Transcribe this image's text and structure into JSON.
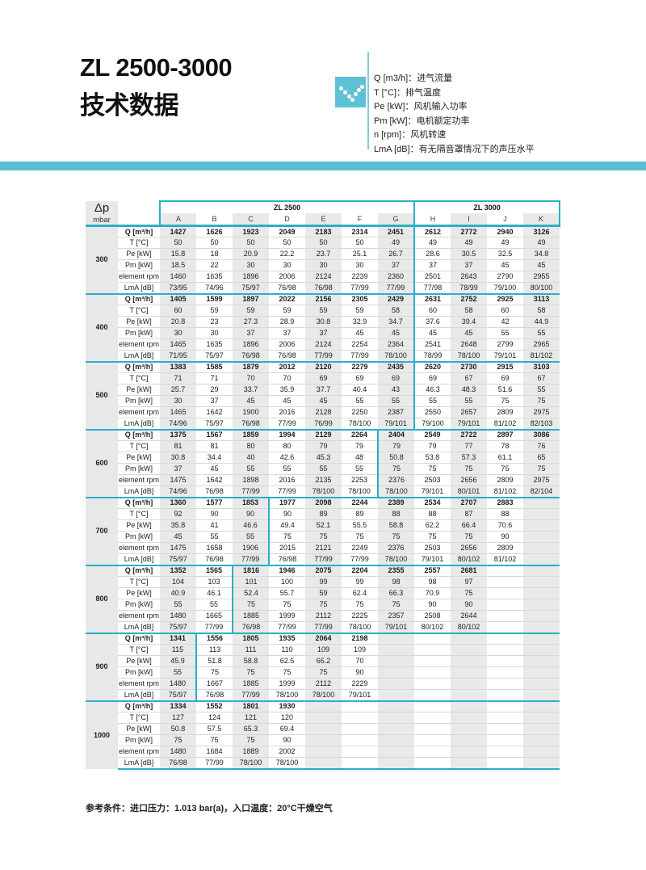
{
  "page": {
    "title_line1": "ZL 2500-3000",
    "title_line2": "技术数据",
    "footnote": "参考条件：进口压力：1.013 bar(a)，入口温度：20°C干燥空气"
  },
  "colors": {
    "accent_teal": "#2bafc9",
    "band_teal": "#58bed4",
    "icon_teal": "#5fc1d6",
    "stripe_gray": "#e9e9e9"
  },
  "legend": {
    "items": [
      {
        "label": "Q [m3/h]：",
        "desc": "进气流量"
      },
      {
        "label": "T [°C]：",
        "desc": "排气温度"
      },
      {
        "label": "Pe [kW]：",
        "desc": "风机输入功率"
      },
      {
        "label": "Pm [kW]：",
        "desc": "电机额定功率"
      },
      {
        "label": "n [rpm]：",
        "desc": "风机转速"
      },
      {
        "label": "LmA [dB]：",
        "desc": "有无隔音罩情况下的声压水平"
      }
    ]
  },
  "table": {
    "corner_top": "Δp",
    "corner_bottom": "mbar",
    "model_headers": [
      {
        "label": "ZL 2500",
        "span": 7
      },
      {
        "label": "ZL 3000",
        "span": 4
      }
    ],
    "columns": [
      "A",
      "B",
      "C",
      "D",
      "E",
      "F",
      "G",
      "H",
      "I",
      "J",
      "K"
    ],
    "row_labels": [
      "Q [m³/h]",
      "T [°C]",
      "Pe [kW]",
      "Pm [kW]",
      "element rpm",
      "LmA [dB]"
    ],
    "groups": [
      {
        "dp": "300",
        "divider_after": "G",
        "rows": [
          [
            "1427",
            "1626",
            "1923",
            "2049",
            "2183",
            "2314",
            "2451",
            "2612",
            "2772",
            "2940",
            "3126"
          ],
          [
            "50",
            "50",
            "50",
            "50",
            "50",
            "50",
            "49",
            "49",
            "49",
            "49",
            "49"
          ],
          [
            "15.8",
            "18",
            "20.9",
            "22.2",
            "23.7",
            "25.1",
            "26.7",
            "28.6",
            "30.5",
            "32.5",
            "34.8"
          ],
          [
            "18.5",
            "22",
            "30",
            "30",
            "30",
            "30",
            "37",
            "37",
            "37",
            "45",
            "45"
          ],
          [
            "1460",
            "1635",
            "1896",
            "2006",
            "2124",
            "2239",
            "2360",
            "2501",
            "2643",
            "2790",
            "2955"
          ],
          [
            "73/95",
            "74/96",
            "75/97",
            "76/98",
            "76/98",
            "77/99",
            "77/99",
            "77/98",
            "78/99",
            "79/100",
            "80/100"
          ]
        ]
      },
      {
        "dp": "400",
        "divider_after": "G",
        "rows": [
          [
            "1405",
            "1599",
            "1897",
            "2022",
            "2156",
            "2305",
            "2429",
            "2631",
            "2752",
            "2925",
            "3113"
          ],
          [
            "60",
            "59",
            "59",
            "59",
            "59",
            "59",
            "58",
            "60",
            "58",
            "60",
            "58"
          ],
          [
            "20.8",
            "23",
            "27.3",
            "28.9",
            "30.8",
            "32.9",
            "34.7",
            "37.6",
            "39.4",
            "42",
            "44.9"
          ],
          [
            "30",
            "30",
            "37",
            "37",
            "37",
            "45",
            "45",
            "45",
            "45",
            "55",
            "55"
          ],
          [
            "1465",
            "1635",
            "1896",
            "2006",
            "2124",
            "2254",
            "2364",
            "2541",
            "2648",
            "2799",
            "2965"
          ],
          [
            "71/95",
            "75/97",
            "76/98",
            "76/98",
            "77/99",
            "77/99",
            "78/100",
            "78/99",
            "78/100",
            "79/101",
            "81/102"
          ]
        ]
      },
      {
        "dp": "500",
        "divider_after": "G",
        "rows": [
          [
            "1383",
            "1585",
            "1879",
            "2012",
            "2120",
            "2279",
            "2435",
            "2620",
            "2730",
            "2915",
            "3103"
          ],
          [
            "71",
            "71",
            "70",
            "70",
            "69",
            "69",
            "69",
            "69",
            "67",
            "69",
            "67"
          ],
          [
            "25.7",
            "29",
            "33.7",
            "35.9",
            "37.7",
            "40.4",
            "43",
            "46.3",
            "48.3",
            "51.6",
            "55"
          ],
          [
            "30",
            "37",
            "45",
            "45",
            "45",
            "55",
            "55",
            "55",
            "55",
            "75",
            "75"
          ],
          [
            "1465",
            "1642",
            "1900",
            "2016",
            "2128",
            "2250",
            "2387",
            "2550",
            "2657",
            "2809",
            "2975"
          ],
          [
            "74/96",
            "75/97",
            "76/98",
            "77/99",
            "76/99",
            "78/100",
            "79/101",
            "79/100",
            "79/101",
            "81/102",
            "82/103"
          ]
        ]
      },
      {
        "dp": "600",
        "divider_after": "F",
        "rows": [
          [
            "1375",
            "1567",
            "1859",
            "1994",
            "2129",
            "2264",
            "2404",
            "2549",
            "2722",
            "2897",
            "3086"
          ],
          [
            "81",
            "81",
            "80",
            "80",
            "79",
            "79",
            "79",
            "79",
            "77",
            "78",
            "76"
          ],
          [
            "30.8",
            "34.4",
            "40",
            "42.6",
            "45.3",
            "48",
            "50.8",
            "53.8",
            "57.3",
            "61.1",
            "65"
          ],
          [
            "37",
            "45",
            "55",
            "55",
            "55",
            "55",
            "75",
            "75",
            "75",
            "75",
            "75"
          ],
          [
            "1475",
            "1642",
            "1898",
            "2016",
            "2135",
            "2253",
            "2376",
            "2503",
            "2656",
            "2809",
            "2975"
          ],
          [
            "74/96",
            "76/98",
            "77/99",
            "77/99",
            "78/100",
            "78/100",
            "78/100",
            "79/101",
            "80/101",
            "81/102",
            "82/104"
          ]
        ]
      },
      {
        "dp": "700",
        "divider_after": "C",
        "rows": [
          [
            "1360",
            "1577",
            "1853",
            "1977",
            "2098",
            "2244",
            "2389",
            "2534",
            "2707",
            "2883",
            ""
          ],
          [
            "92",
            "90",
            "90",
            "90",
            "89",
            "89",
            "88",
            "88",
            "87",
            "88",
            ""
          ],
          [
            "35.8",
            "41",
            "46.6",
            "49.4",
            "52.1",
            "55.5",
            "58.8",
            "62.2",
            "66.4",
            "70.6",
            ""
          ],
          [
            "45",
            "55",
            "55",
            "75",
            "75",
            "75",
            "75",
            "75",
            "75",
            "90",
            ""
          ],
          [
            "1475",
            "1658",
            "1906",
            "2015",
            "2121",
            "2249",
            "2376",
            "2503",
            "2656",
            "2809",
            ""
          ],
          [
            "75/97",
            "76/98",
            "77/99",
            "76/98",
            "77/99",
            "77/99",
            "78/100",
            "79/101",
            "80/102",
            "81/102",
            ""
          ]
        ]
      },
      {
        "dp": "800",
        "divider_after": "B",
        "rows": [
          [
            "1352",
            "1565",
            "1816",
            "1946",
            "2075",
            "2204",
            "2355",
            "2557",
            "2681",
            "",
            ""
          ],
          [
            "104",
            "103",
            "101",
            "100",
            "99",
            "99",
            "98",
            "98",
            "97",
            "",
            ""
          ],
          [
            "40.9",
            "46.1",
            "52.4",
            "55.7",
            "59",
            "62.4",
            "66.3",
            "70.9",
            "75",
            "",
            ""
          ],
          [
            "55",
            "55",
            "75",
            "75",
            "75",
            "75",
            "75",
            "90",
            "90",
            "",
            ""
          ],
          [
            "1480",
            "1665",
            "1885",
            "1999",
            "2112",
            "2225",
            "2357",
            "2508",
            "2644",
            "",
            ""
          ],
          [
            "75/97",
            "77/99",
            "76/98",
            "77/99",
            "77/99",
            "78/100",
            "79/101",
            "80/102",
            "80/102",
            "",
            ""
          ]
        ]
      },
      {
        "dp": "900",
        "divider_after": "A",
        "rows": [
          [
            "1341",
            "1556",
            "1805",
            "1935",
            "2064",
            "2198",
            "",
            "",
            "",
            "",
            ""
          ],
          [
            "115",
            "113",
            "111",
            "110",
            "109",
            "109",
            "",
            "",
            "",
            "",
            ""
          ],
          [
            "45.9",
            "51.8",
            "58.8",
            "62.5",
            "66.2",
            "70",
            "",
            "",
            "",
            "",
            ""
          ],
          [
            "55",
            "75",
            "75",
            "75",
            "75",
            "90",
            "",
            "",
            "",
            "",
            ""
          ],
          [
            "1480",
            "1667",
            "1885",
            "1999",
            "2112",
            "2229",
            "",
            "",
            "",
            "",
            ""
          ],
          [
            "75/97",
            "76/98",
            "77/99",
            "78/100",
            "78/100",
            "79/101",
            "",
            "",
            "",
            "",
            ""
          ]
        ]
      },
      {
        "dp": "1000",
        "divider_after": null,
        "rows": [
          [
            "1334",
            "1552",
            "1801",
            "1930",
            "",
            "",
            "",
            "",
            "",
            "",
            ""
          ],
          [
            "127",
            "124",
            "121",
            "120",
            "",
            "",
            "",
            "",
            "",
            "",
            ""
          ],
          [
            "50.8",
            "57.5",
            "65.3",
            "69.4",
            "",
            "",
            "",
            "",
            "",
            "",
            ""
          ],
          [
            "75",
            "75",
            "75",
            "90",
            "",
            "",
            "",
            "",
            "",
            "",
            ""
          ],
          [
            "1480",
            "1684",
            "1889",
            "2002",
            "",
            "",
            "",
            "",
            "",
            "",
            ""
          ],
          [
            "76/98",
            "77/99",
            "78/100",
            "78/100",
            "",
            "",
            "",
            "",
            "",
            "",
            ""
          ]
        ]
      }
    ]
  }
}
